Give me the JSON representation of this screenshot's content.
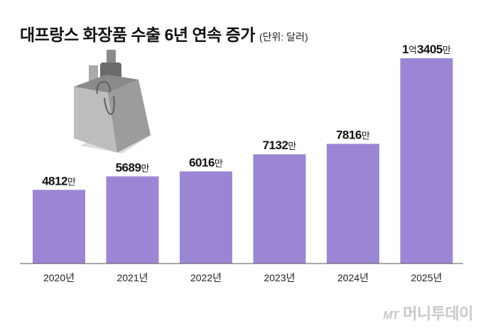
{
  "title": "대프랑스 화장품 수출 6년 연속 증가",
  "unit_note": "(단위: 달러)",
  "watermark": {
    "logo": "MT",
    "name": "머니투데이"
  },
  "colors": {
    "bar": "#9b86d6",
    "axis": "#555555",
    "text": "#111111"
  },
  "chart_data": {
    "type": "bar",
    "title": "대프랑스 화장품 수출 6년 연속 증가",
    "categories": [
      "2020년",
      "2021년",
      "2022년",
      "2023년",
      "2024년",
      "2025년"
    ],
    "values": [
      48120000,
      56890000,
      60160000,
      71320000,
      78160000,
      134050000
    ],
    "labels": [
      {
        "parts": [
          [
            "4812",
            "big"
          ],
          [
            "만",
            "small"
          ]
        ]
      },
      {
        "parts": [
          [
            "5689",
            "big"
          ],
          [
            "만",
            "small"
          ]
        ]
      },
      {
        "parts": [
          [
            "6016",
            "big"
          ],
          [
            "만",
            "small"
          ]
        ]
      },
      {
        "parts": [
          [
            "7132",
            "big"
          ],
          [
            "만",
            "small"
          ]
        ]
      },
      {
        "parts": [
          [
            "7816",
            "big"
          ],
          [
            "만",
            "small"
          ]
        ]
      },
      {
        "parts": [
          [
            "1",
            "big"
          ],
          [
            "억",
            "small"
          ],
          [
            "3405",
            "big"
          ],
          [
            "만",
            "small"
          ]
        ]
      }
    ],
    "ylim": [
      0,
      134050000
    ],
    "grid": false,
    "legend": "none"
  }
}
